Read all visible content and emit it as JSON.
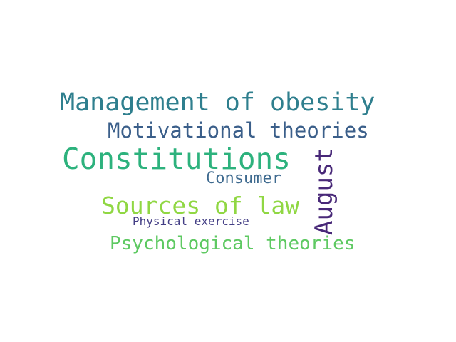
{
  "words": [
    {
      "text": "Management of obesity",
      "color": "#2f7f8e"
    },
    {
      "text": "Motivational theories",
      "color": "#3b5f8a"
    },
    {
      "text": "Constitutions",
      "color": "#2db27d"
    },
    {
      "text": "Consumer",
      "color": "#3e6a8f"
    },
    {
      "text": "Sources of law",
      "color": "#90d743"
    },
    {
      "text": "Physical exercise",
      "color": "#433e85"
    },
    {
      "text": "Psychological theories",
      "color": "#5ec962"
    },
    {
      "text": "August",
      "color": "#482878"
    }
  ]
}
